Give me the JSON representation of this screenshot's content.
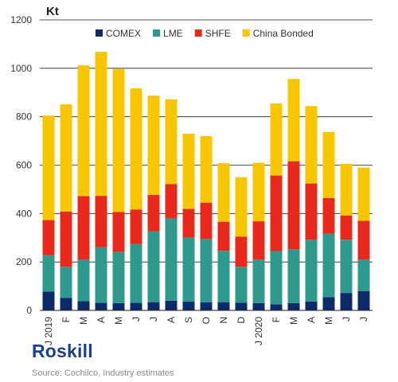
{
  "chart_data": {
    "type": "bar",
    "stacked": true,
    "unit_label": "Kt",
    "ylim": [
      0,
      1200
    ],
    "yticks": [
      0,
      200,
      400,
      600,
      800,
      1000,
      1200
    ],
    "grid": true,
    "legend_position": "top",
    "categories": [
      "J 2019",
      "F",
      "M",
      "A",
      "M",
      "J",
      "J",
      "A",
      "S",
      "O",
      "N",
      "D",
      "J 2020",
      "F",
      "M",
      "A",
      "M",
      "J",
      "J"
    ],
    "series": [
      {
        "name": "COMEX",
        "color": "#0d2b6b",
        "values": [
          78,
          52,
          38,
          31,
          30,
          31,
          34,
          40,
          36,
          33,
          34,
          32,
          30,
          25,
          30,
          37,
          55,
          72,
          80
        ]
      },
      {
        "name": "LME",
        "color": "#2e9a8e",
        "values": [
          150,
          128,
          172,
          230,
          212,
          243,
          293,
          340,
          265,
          262,
          212,
          148,
          180,
          220,
          222,
          255,
          262,
          220,
          130
        ]
      },
      {
        "name": "SHFE",
        "color": "#e8291c",
        "values": [
          145,
          228,
          262,
          212,
          165,
          143,
          150,
          142,
          118,
          150,
          120,
          125,
          158,
          312,
          364,
          232,
          147,
          100,
          160
        ]
      },
      {
        "name": "China Bonded",
        "color": "#f7c600",
        "values": [
          432,
          443,
          540,
          595,
          590,
          500,
          410,
          350,
          311,
          275,
          242,
          245,
          242,
          298,
          340,
          320,
          273,
          213,
          220
        ]
      }
    ]
  },
  "footer": {
    "brand": "Roskill",
    "source": "Source: Cochilco, Industry estimates"
  }
}
